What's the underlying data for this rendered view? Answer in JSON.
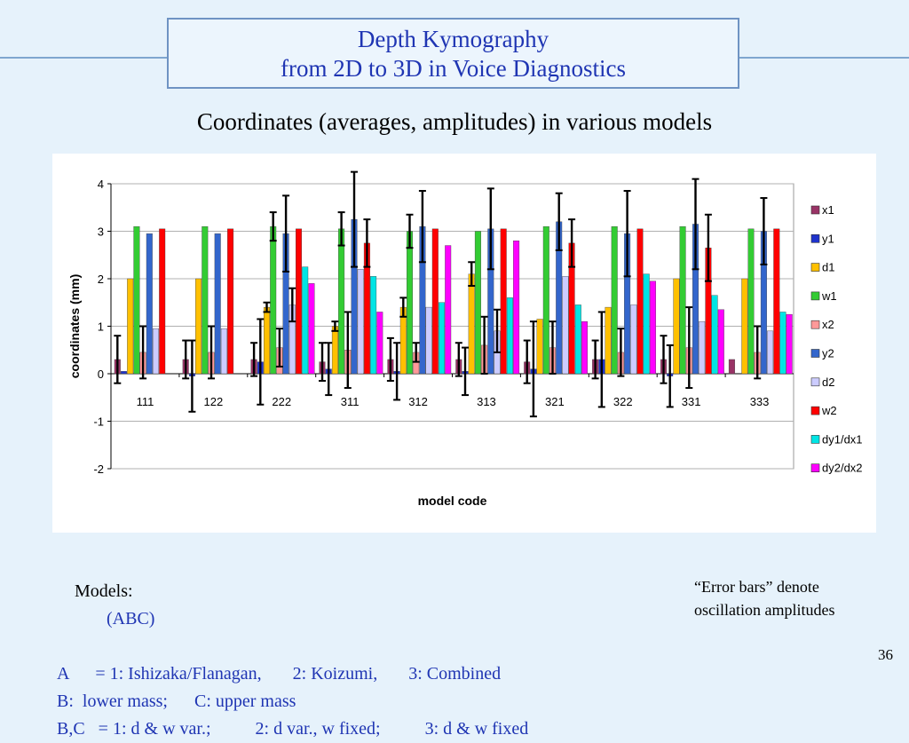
{
  "title": {
    "line1": "Depth Kymography",
    "line2": "from 2D to 3D in Voice Diagnostics"
  },
  "subtitle": "Coordinates (averages, amplitudes) in various models",
  "chart_data": {
    "type": "bar",
    "xlabel": "model code",
    "ylabel": "coordinates (mm)",
    "ylim": [
      -2,
      4
    ],
    "yticks": [
      "4",
      "3",
      "2",
      "1",
      "0",
      "-1",
      "-2"
    ],
    "grid": true,
    "legend_position": "right",
    "error_bars": "oscillation amplitudes",
    "categories": [
      "111",
      "122",
      "222",
      "311",
      "312",
      "313",
      "321",
      "322",
      "331",
      "333"
    ],
    "series": [
      {
        "name": "x1",
        "color": "#993366",
        "values": [
          0.3,
          0.3,
          0.3,
          0.25,
          0.3,
          0.3,
          0.25,
          0.3,
          0.3,
          0.3
        ],
        "errors": [
          0.5,
          0.4,
          0.35,
          0.4,
          0.45,
          0.35,
          0.45,
          0.4,
          0.5,
          null
        ]
      },
      {
        "name": "y1",
        "color": "#1f33cc",
        "values": [
          0.05,
          -0.05,
          0.25,
          0.1,
          0.05,
          0.05,
          0.1,
          0.3,
          -0.05,
          null
        ],
        "errors": [
          null,
          0.75,
          0.9,
          0.55,
          0.6,
          0.5,
          1.0,
          1.0,
          0.65,
          null
        ]
      },
      {
        "name": "d1",
        "color": "#ffc000",
        "values": [
          2.0,
          2.0,
          1.4,
          1.0,
          1.4,
          2.1,
          1.15,
          1.4,
          2.0,
          2.0
        ],
        "errors": [
          null,
          null,
          0.1,
          0.1,
          0.2,
          0.25,
          null,
          null,
          null,
          null
        ]
      },
      {
        "name": "w1",
        "color": "#33cc33",
        "values": [
          3.1,
          3.1,
          3.1,
          3.05,
          3.0,
          3.0,
          3.1,
          3.1,
          3.1,
          3.05
        ],
        "errors": [
          null,
          null,
          0.3,
          0.35,
          0.35,
          null,
          null,
          null,
          null,
          null
        ]
      },
      {
        "name": "x2",
        "color": "#ff9999",
        "values": [
          0.45,
          0.45,
          0.55,
          0.5,
          0.45,
          0.6,
          0.55,
          0.45,
          0.55,
          0.45
        ],
        "errors": [
          0.55,
          0.55,
          0.4,
          0.8,
          0.2,
          0.6,
          0.55,
          0.5,
          0.85,
          0.55
        ]
      },
      {
        "name": "y2",
        "color": "#3366cc",
        "values": [
          2.95,
          2.95,
          2.95,
          3.25,
          3.1,
          3.05,
          3.2,
          2.95,
          3.15,
          3.0
        ],
        "errors": [
          null,
          null,
          0.8,
          1.0,
          0.75,
          0.85,
          0.6,
          0.9,
          0.95,
          0.7
        ]
      },
      {
        "name": "d2",
        "color": "#ccccff",
        "values": [
          0.95,
          0.95,
          1.45,
          2.2,
          1.4,
          0.9,
          2.05,
          1.45,
          1.1,
          0.9
        ],
        "errors": [
          null,
          null,
          0.35,
          null,
          null,
          0.45,
          null,
          null,
          null,
          null
        ]
      },
      {
        "name": "w2",
        "color": "#ff0000",
        "values": [
          3.05,
          3.05,
          3.05,
          2.75,
          3.05,
          3.05,
          2.75,
          3.05,
          2.65,
          3.05
        ],
        "errors": [
          null,
          null,
          null,
          0.5,
          null,
          null,
          0.5,
          null,
          0.7,
          null
        ]
      },
      {
        "name": "dy1/dx1",
        "color": "#00e5e5",
        "values": [
          null,
          null,
          2.25,
          2.05,
          1.5,
          1.6,
          1.45,
          2.1,
          1.65,
          1.3
        ],
        "errors": [
          null,
          null,
          null,
          null,
          null,
          null,
          null,
          null,
          null,
          null
        ]
      },
      {
        "name": "dy2/dx2",
        "color": "#ff00ff",
        "values": [
          null,
          null,
          1.9,
          1.3,
          2.7,
          2.8,
          1.1,
          1.95,
          1.35,
          1.25
        ],
        "errors": [
          null,
          null,
          null,
          null,
          null,
          null,
          null,
          null,
          null,
          null
        ]
      }
    ]
  },
  "models": {
    "label": "Models:",
    "code": "(ABC)",
    "line_a": "A      = 1: Ishizaka/Flanagan,       2: Koizumi,       3: Combined",
    "line_b": "B:  lower mass;      C: upper mass",
    "line_bc": "B,C   = 1: d & w var.;          2: d var., w fixed;          3: d & w fixed"
  },
  "note": {
    "line1": "“Error bars” denote",
    "line2": "oscillation amplitudes"
  },
  "slide_number": "36"
}
